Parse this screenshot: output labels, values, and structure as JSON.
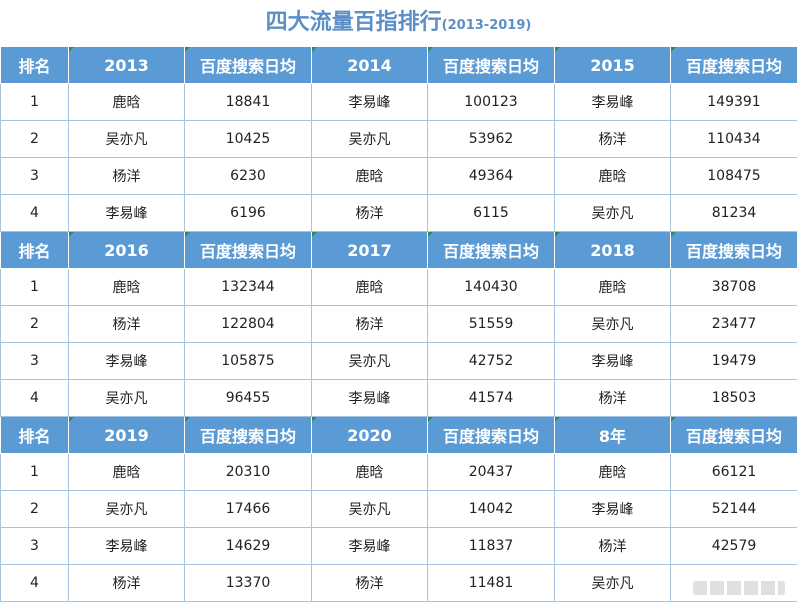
{
  "title": {
    "main": "四大流量百指排行",
    "sub": "(2013-2019)"
  },
  "chart_data": {
    "type": "table",
    "title": "四大流量百指排行(2013-2019)",
    "blocks": [
      {
        "header": [
          "排名",
          "2013",
          "百度搜索日均",
          "2014",
          "百度搜索日均",
          "2015",
          "百度搜索日均"
        ],
        "rows": [
          [
            "1",
            "鹿晗",
            "18841",
            "李易峰",
            "100123",
            "李易峰",
            "149391"
          ],
          [
            "2",
            "吴亦凡",
            "10425",
            "吴亦凡",
            "53962",
            "杨洋",
            "110434"
          ],
          [
            "3",
            "杨洋",
            "6230",
            "鹿晗",
            "49364",
            "鹿晗",
            "108475"
          ],
          [
            "4",
            "李易峰",
            "6196",
            "杨洋",
            "6115",
            "吴亦凡",
            "81234"
          ]
        ]
      },
      {
        "header": [
          "排名",
          "2016",
          "百度搜索日均",
          "2017",
          "百度搜索日均",
          "2018",
          "百度搜索日均"
        ],
        "rows": [
          [
            "1",
            "鹿晗",
            "132344",
            "鹿晗",
            "140430",
            "鹿晗",
            "38708"
          ],
          [
            "2",
            "杨洋",
            "122804",
            "杨洋",
            "51559",
            "吴亦凡",
            "23477"
          ],
          [
            "3",
            "李易峰",
            "105875",
            "吴亦凡",
            "42752",
            "李易峰",
            "19479"
          ],
          [
            "4",
            "吴亦凡",
            "96455",
            "李易峰",
            "41574",
            "杨洋",
            "18503"
          ]
        ]
      },
      {
        "header": [
          "排名",
          "2019",
          "百度搜索日均",
          "2020",
          "百度搜索日均",
          "8年",
          "百度搜索日均"
        ],
        "rows": [
          [
            "1",
            "鹿晗",
            "20310",
            "鹿晗",
            "20437",
            "鹿晗",
            "66121"
          ],
          [
            "2",
            "吴亦凡",
            "17466",
            "吴亦凡",
            "14042",
            "李易峰",
            "52144"
          ],
          [
            "3",
            "李易峰",
            "14629",
            "李易峰",
            "11837",
            "杨洋",
            "42579"
          ],
          [
            "4",
            "杨洋",
            "13370",
            "杨洋",
            "11481",
            "吴亦凡",
            ""
          ]
        ]
      }
    ]
  }
}
